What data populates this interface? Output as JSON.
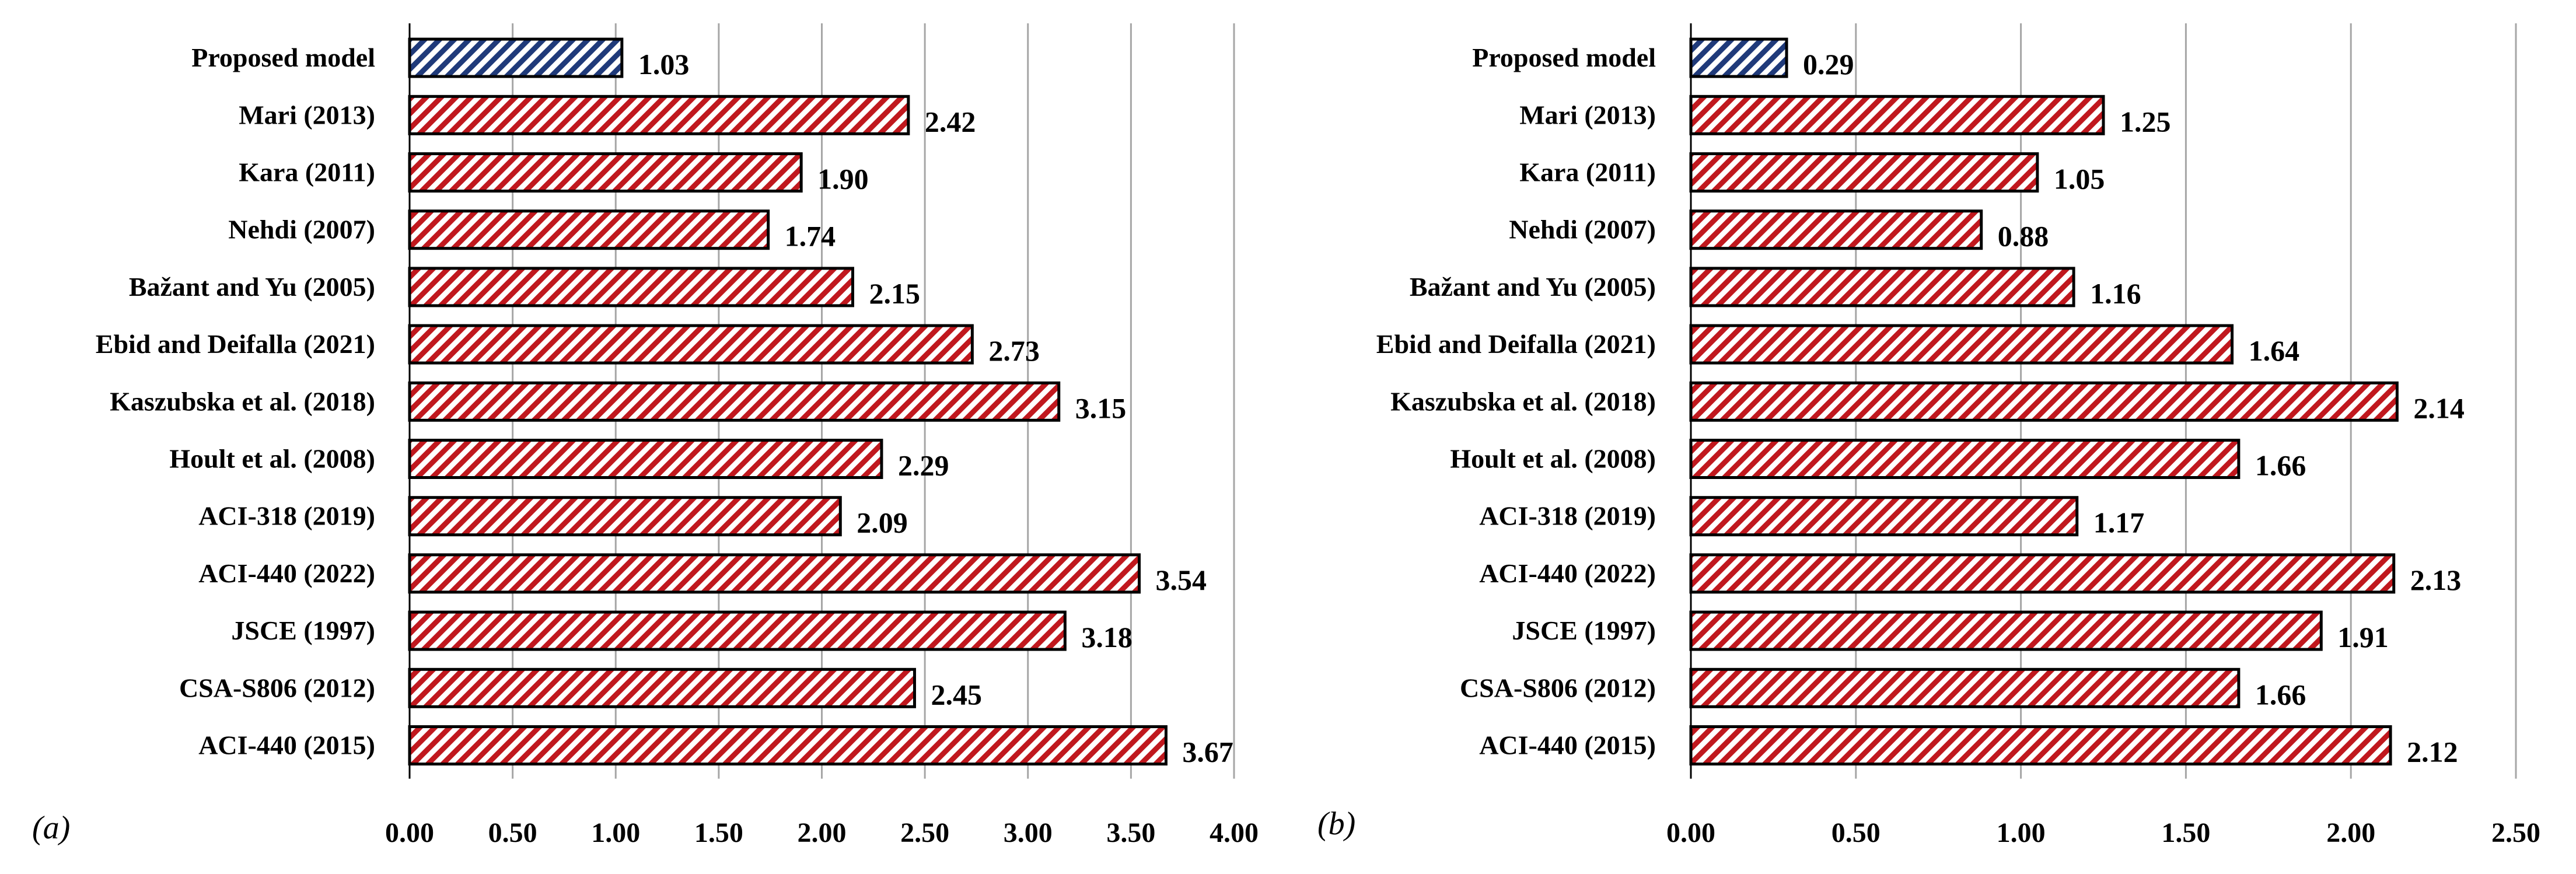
{
  "chart_data": [
    {
      "type": "bar",
      "orientation": "horizontal",
      "panel_label": "(a)",
      "categories": [
        "Proposed model",
        "Mari (2013)",
        "Kara (2011)",
        "Nehdi (2007)",
        "Bažant and Yu (2005)",
        "Ebid and Deifalla (2021)",
        "Kaszubska  et al. (2018)",
        "Hoult et al. (2008)",
        "ACI-318 (2019)",
        "ACI-440 (2022)",
        "JSCE (1997)",
        "CSA-S806 (2012)",
        "ACI-440 (2015)"
      ],
      "values": [
        1.03,
        2.42,
        1.9,
        1.74,
        2.15,
        2.73,
        3.15,
        2.29,
        2.09,
        3.54,
        3.18,
        2.45,
        3.67
      ],
      "value_labels": [
        "1.03",
        "2.42",
        "1.90",
        "1.74",
        "2.15",
        "2.73",
        "3.15",
        "2.29",
        "2.09",
        "3.54",
        "3.18",
        "2.45",
        "3.67"
      ],
      "xlim": [
        0,
        4
      ],
      "xticks": [
        "0.00",
        "0.50",
        "1.00",
        "1.50",
        "2.00",
        "2.50",
        "3.00",
        "3.50",
        "4.00"
      ],
      "grid": "vertical",
      "colors": {
        "highlight": "#1f3a7a",
        "others": "#c0181e"
      },
      "pattern": "diagonal-hatch",
      "title": "",
      "xlabel": "",
      "ylabel": ""
    },
    {
      "type": "bar",
      "orientation": "horizontal",
      "panel_label": "(b)",
      "categories": [
        "Proposed model",
        "Mari (2013)",
        "Kara (2011)",
        "Nehdi (2007)",
        "Bažant and Yu (2005)",
        "Ebid and Deifalla (2021)",
        "Kaszubska  et al. (2018)",
        "Hoult et al. (2008)",
        "ACI-318 (2019)",
        "ACI-440 (2022)",
        "JSCE (1997)",
        "CSA-S806 (2012)",
        "ACI-440 (2015)"
      ],
      "values": [
        0.29,
        1.25,
        1.05,
        0.88,
        1.16,
        1.64,
        2.14,
        1.66,
        1.17,
        2.13,
        1.91,
        1.66,
        2.12
      ],
      "value_labels": [
        "0.29",
        "1.25",
        "1.05",
        "0.88",
        "1.16",
        "1.64",
        "2.14",
        "1.66",
        "1.17",
        "2.13",
        "1.91",
        "1.66",
        "2.12"
      ],
      "xlim": [
        0,
        2.5
      ],
      "xticks": [
        "0.00",
        "0.50",
        "1.00",
        "1.50",
        "2.00",
        "2.50"
      ],
      "grid": "vertical",
      "colors": {
        "highlight": "#1f3a7a",
        "others": "#c0181e"
      },
      "pattern": "diagonal-hatch",
      "title": "",
      "xlabel": "",
      "ylabel": ""
    }
  ]
}
